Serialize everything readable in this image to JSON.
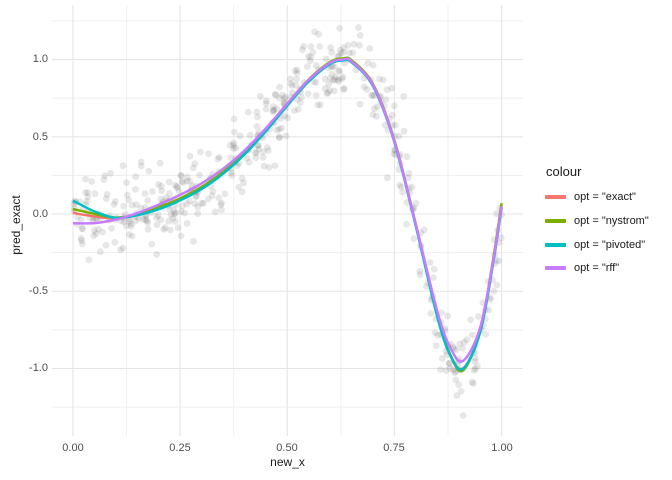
{
  "chart_data": {
    "type": "scatter",
    "title": "",
    "xlabel": "new_x",
    "ylabel": "pred_exact",
    "xlim": [
      -0.049,
      1.05
    ],
    "ylim": [
      -1.437,
      1.353
    ],
    "x_ticks": {
      "labels": [
        "0.00",
        "0.25",
        "0.50",
        "0.75",
        "1.00"
      ],
      "values": [
        0,
        0.25,
        0.5,
        0.75,
        1.0
      ]
    },
    "y_ticks": {
      "labels": [
        "1.0",
        "0.5",
        "0.0",
        "-0.5",
        "-1.0"
      ],
      "values": [
        1.0,
        0.5,
        0.0,
        -0.5,
        -1.0
      ]
    },
    "x_minor": [
      0.125,
      0.375,
      0.625,
      0.875
    ],
    "y_minor": [
      1.25,
      0.75,
      0.25,
      -0.25,
      -0.75,
      -1.25
    ],
    "grid": {
      "on": true,
      "major_color": "#E5E5E5",
      "minor_color": "#EFEFEF"
    },
    "theme": {
      "background": "#FFFFFF",
      "axis_text_color": "#4D4D4D",
      "title_text_color": "#1A1A1A"
    },
    "scatter": {
      "description": "noisy observations around y = sin(2*pi*x^3), x uniform on [0,1]",
      "n": 500,
      "noise_sd": 0.13,
      "seed": 42,
      "color": "#3A3A3A",
      "opacity": 0.12,
      "radius": 3.4
    },
    "legend": {
      "title": "colour",
      "position": "right"
    },
    "series_x": [
      0,
      0.05,
      0.1,
      0.15,
      0.2,
      0.25,
      0.3,
      0.35,
      0.4,
      0.45,
      0.5,
      0.55,
      0.6,
      0.63,
      0.65,
      0.7,
      0.75,
      0.8,
      0.85,
      0.88,
      0.91,
      0.95,
      0.98,
      1.0
    ],
    "series": [
      {
        "name": "opt = \"exact\"",
        "color": "#F8766D",
        "values": [
          0.007,
          -0.016,
          -0.028,
          -0.006,
          0.037,
          0.094,
          0.168,
          0.266,
          0.391,
          0.542,
          0.707,
          0.864,
          0.977,
          1.0,
          0.988,
          0.834,
          0.471,
          -0.075,
          -0.66,
          -0.909,
          -1.0,
          -0.764,
          -0.317,
          0.05
        ]
      },
      {
        "name": "opt = \"nystrom\"",
        "color": "#7CAE00",
        "values": [
          0.032,
          0.001,
          -0.023,
          -0.004,
          0.044,
          0.101,
          0.175,
          0.273,
          0.398,
          0.549,
          0.714,
          0.871,
          0.984,
          1.007,
          0.995,
          0.841,
          0.478,
          -0.068,
          -0.656,
          -0.91,
          -1.012,
          -0.756,
          -0.299,
          0.07
        ]
      },
      {
        "name": "opt = \"pivoted\"",
        "color": "#00BFC4",
        "values": [
          0.087,
          0.017,
          -0.025,
          -0.008,
          0.031,
          0.088,
          0.162,
          0.26,
          0.385,
          0.536,
          0.701,
          0.858,
          0.971,
          0.994,
          0.982,
          0.828,
          0.465,
          -0.081,
          -0.666,
          -0.912,
          -1.002,
          -0.767,
          -0.325,
          0.04
        ]
      },
      {
        "name": "opt = \"rff\"",
        "color": "#C77CFF",
        "values": [
          -0.06,
          -0.059,
          -0.036,
          0.006,
          0.061,
          0.124,
          0.198,
          0.292,
          0.41,
          0.555,
          0.714,
          0.868,
          0.979,
          1.0,
          0.988,
          0.834,
          0.472,
          -0.069,
          -0.63,
          -0.863,
          -0.951,
          -0.737,
          -0.311,
          0.05
        ]
      }
    ],
    "line_width": 2.5
  }
}
